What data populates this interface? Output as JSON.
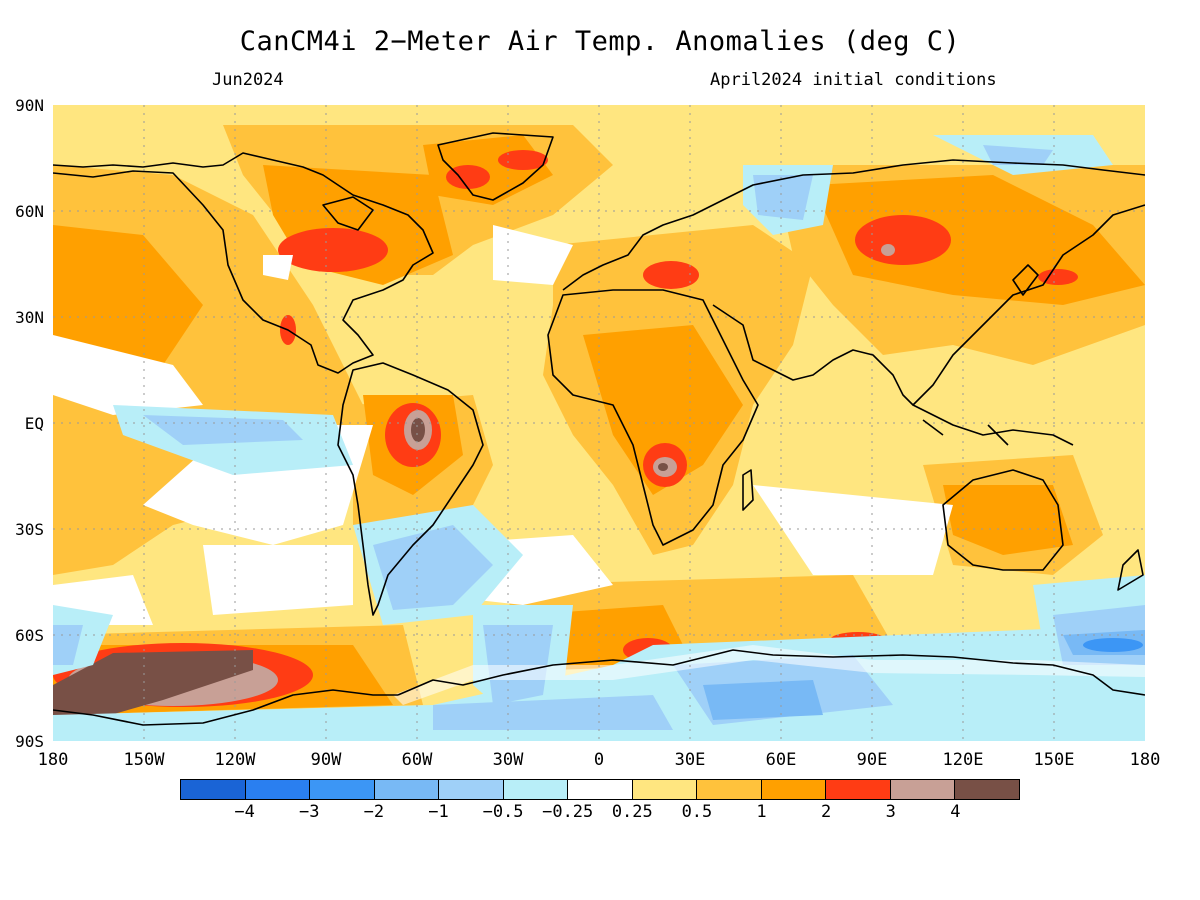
{
  "title": "CanCM4i 2−Meter Air Temp. Anomalies (deg C)",
  "subtitle_left": "Jun2024",
  "subtitle_right": "April2024 initial conditions",
  "lat_labels": [
    "90N",
    "60N",
    "30N",
    "EQ",
    "30S",
    "60S",
    "90S"
  ],
  "lon_labels": [
    "180",
    "150W",
    "120W",
    "90W",
    "60W",
    "30W",
    "0",
    "30E",
    "60E",
    "90E",
    "120E",
    "150E",
    "180"
  ],
  "colorbar": {
    "colors": [
      "#1a64d6",
      "#2a7ff0",
      "#3c96f5",
      "#78b9f5",
      "#9fd0f8",
      "#b8eef8",
      "#ffffff",
      "#ffe680",
      "#ffc23c",
      "#ffa000",
      "#ff3c14",
      "#c8a096",
      "#785046"
    ],
    "labels": [
      "−4",
      "−3",
      "−2",
      "−1",
      "−0.5",
      "−0.25",
      "0.25",
      "0.5",
      "1",
      "2",
      "3",
      "4"
    ]
  },
  "map": {
    "variable": "2-meter air temperature anomaly",
    "units": "deg C",
    "coastline_color": "#000000",
    "grid_color": "#9a9a9a"
  }
}
